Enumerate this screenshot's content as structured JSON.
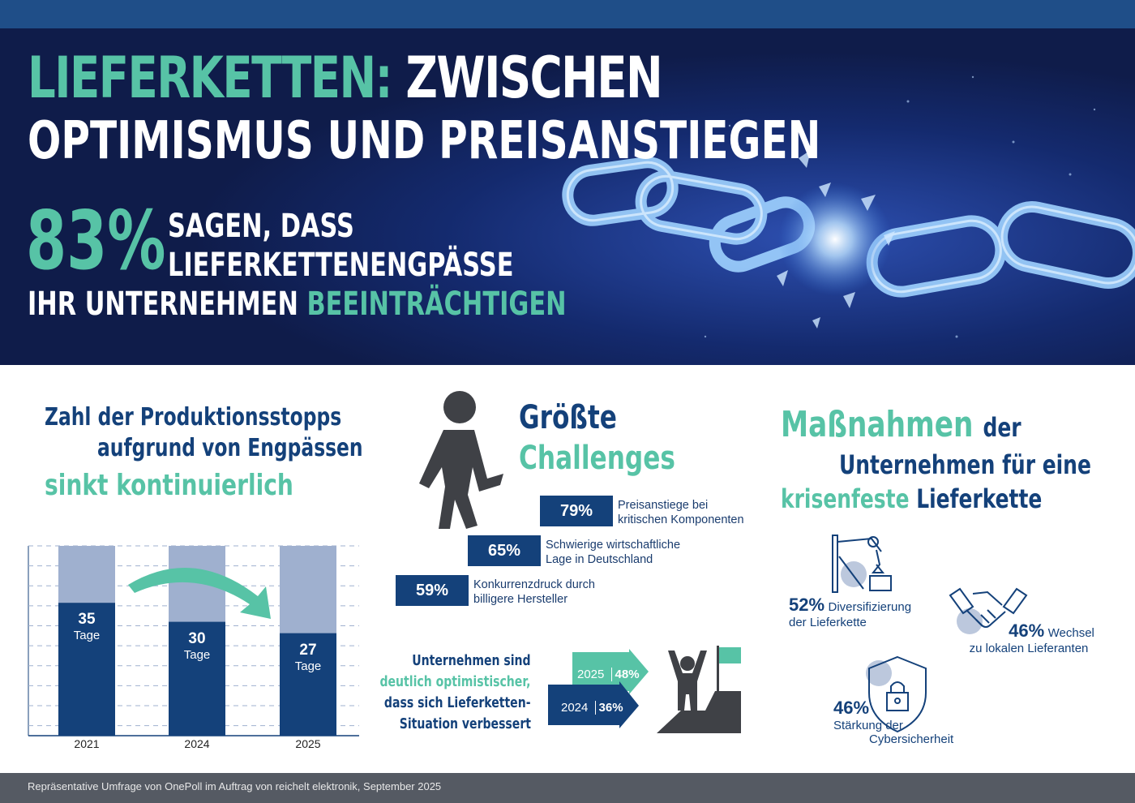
{
  "hero": {
    "title_accent": "LIEFERKETTEN:",
    "title_rest": "ZWISCHEN",
    "title_line2": "OPTIMISMUS UND PREISANSTIEGEN",
    "stat_value": "83%",
    "stat_line1": "SAGEN, DASS",
    "stat_line2": "LIEFERKETTENENGPÄSSE",
    "stat_line3_plain": "IHR UNTERNEHMEN",
    "stat_line3_accent": "BEEINTRÄCHTIGEN"
  },
  "stops": {
    "title_line1": "Zahl der Produktionsstopps",
    "title_line2": "aufgrund von Engpässen",
    "title_line3": "sinkt kontinuierlich"
  },
  "chart_data": {
    "type": "bar",
    "categories": [
      "2021",
      "2024",
      "2025"
    ],
    "values": [
      35,
      30,
      27
    ],
    "value_labels": [
      "35",
      "30",
      "27"
    ],
    "unit_label": "Tage",
    "ylim": [
      0,
      50
    ],
    "grid": true,
    "colors": {
      "value": "#14417a",
      "remainder": "#9fb0cf",
      "arrow": "#57c3a6"
    }
  },
  "challenges": {
    "title_line1": "Größte",
    "title_line2": "Challenges",
    "items": [
      {
        "pct": "79%",
        "line1": "Preisanstiege bei",
        "line2": "kritischen Komponenten"
      },
      {
        "pct": "65%",
        "line1": "Schwierige wirtschaftliche",
        "line2": "Lage in Deutschland"
      },
      {
        "pct": "59%",
        "line1": "Konkurrenzdruck durch",
        "line2": "billigere Hersteller"
      }
    ]
  },
  "optimism": {
    "line1": "Unternehmen sind",
    "line2": "deutlich optimistischer,",
    "line3": "dass sich Lieferketten-",
    "line4": "Situation verbessert",
    "rows": [
      {
        "year": "2025",
        "pct": "48%"
      },
      {
        "year": "2024",
        "pct": "36%"
      }
    ]
  },
  "measures": {
    "title_accent": "Maßnahmen",
    "title_rest": "der",
    "title_line2": "Unternehmen für eine",
    "title_line3_accent": "krisenfeste",
    "title_line3_rest": "Lieferkette",
    "items": [
      {
        "pct": "52%",
        "line1": "Diversifizierung",
        "line2": "der Lieferkette",
        "icon": "robot-arm-icon"
      },
      {
        "pct": "46%",
        "line1": "Wechsel",
        "line2": "zu lokalen Lieferanten",
        "icon": "handshake-icon"
      },
      {
        "pct": "46%",
        "line1": "Stärkung der",
        "line2": "Cybersicherheit",
        "icon": "shield-lock-icon"
      }
    ]
  },
  "footer": {
    "source": "Repräsentative Umfrage von OnePoll im Auftrag von reichelt elektronik, September 2025"
  },
  "colors": {
    "navy": "#14417a",
    "teal": "#57c3a6",
    "hero_bg": "#0f1c4a",
    "light_bar": "#9fb0cf"
  }
}
